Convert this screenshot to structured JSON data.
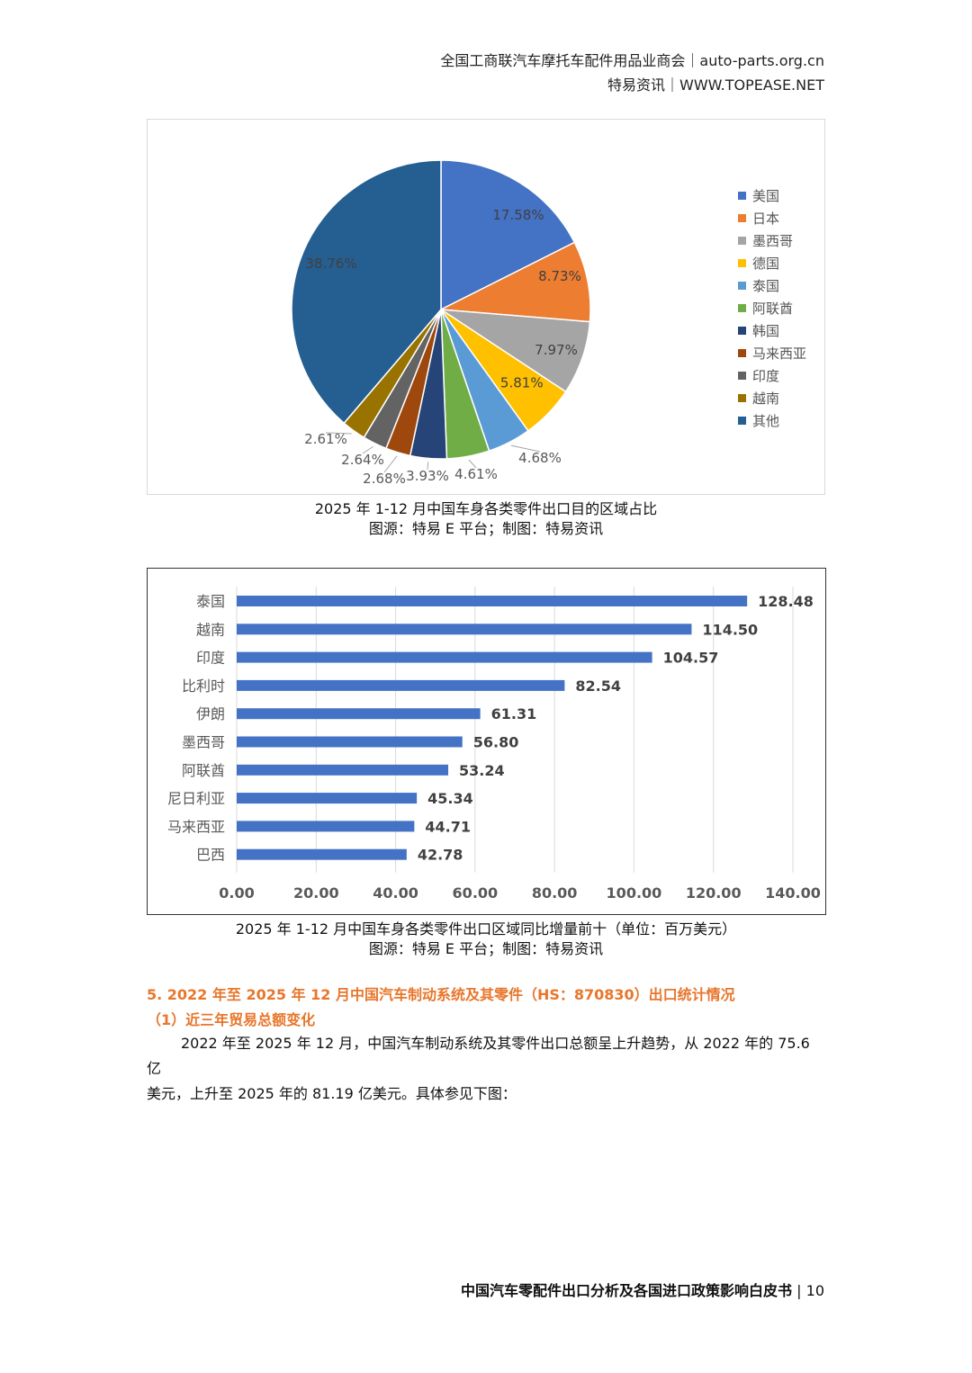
{
  "header": {
    "line1": "全国工商联汽车摩托车配件用品业商会｜auto-parts.org.cn",
    "line2": "特易资讯｜WWW.TOPEASE.NET"
  },
  "pie_caption": {
    "title": "2025 年 1-12 月中国车身各类零件出口目的区域占比",
    "source": "图源：特易 E 平台；制图：特易资讯"
  },
  "bar_caption": {
    "title": "2025 年 1-12 月中国车身各类零件出口区域同比增量前十（单位：百万美元）",
    "source": "图源：特易 E 平台；制图：特易资讯"
  },
  "section": {
    "heading": "5. 2022 年至 2025 年 12 月中国汽车制动系统及其零件（HS：870830）出口统计情况",
    "subheading": "（1）近三年贸易总额变化",
    "paragraph_line1": "2022 年至 2025 年 12 月，中国汽车制动系统及其零件出口总额呈上升趋势，从 2022 年的 75.6 亿",
    "paragraph_line2": "美元，上升至 2025 年的 81.19 亿美元。具体参见下图："
  },
  "footer": {
    "title": "中国汽车零配件出口分析及各国进口政策影响白皮书",
    "separator": "|",
    "page": "10"
  },
  "chart_data": [
    {
      "type": "pie",
      "categories": [
        "美国",
        "日本",
        "墨西哥",
        "德国",
        "泰国",
        "阿联酋",
        "韩国",
        "马来西亚",
        "印度",
        "越南",
        "其他"
      ],
      "values": [
        17.58,
        8.73,
        7.97,
        5.81,
        4.68,
        4.61,
        3.93,
        2.68,
        2.64,
        2.61,
        38.76
      ],
      "labels": [
        "17.58%",
        "8.73%",
        "7.97%",
        "5.81%",
        "4.68%",
        "4.61%",
        "3.93%",
        "2.68%",
        "2.64%",
        "2.61%",
        "38.76%"
      ],
      "colors": [
        "#4472c4",
        "#ed7d31",
        "#a5a5a5",
        "#ffc000",
        "#5b9bd5",
        "#70ad47",
        "#264478",
        "#9e480e",
        "#636363",
        "#997300",
        "#255e91"
      ],
      "legend_position": "right"
    },
    {
      "type": "bar",
      "orientation": "horizontal",
      "categories": [
        "泰国",
        "越南",
        "印度",
        "比利时",
        "伊朗",
        "墨西哥",
        "阿联酋",
        "尼日利亚",
        "马来西亚",
        "巴西"
      ],
      "values": [
        128.48,
        114.5,
        104.57,
        82.54,
        61.31,
        56.8,
        53.24,
        45.34,
        44.71,
        42.78
      ],
      "value_labels": [
        "128.48",
        "114.50",
        "104.57",
        "82.54",
        "61.31",
        "56.80",
        "53.24",
        "45.34",
        "44.71",
        "42.78"
      ],
      "x_ticks": [
        "0.00",
        "20.00",
        "40.00",
        "60.00",
        "80.00",
        "100.00",
        "120.00",
        "140.00"
      ],
      "xlim": [
        0,
        140
      ],
      "bar_color": "#4472c4",
      "grid": true
    }
  ]
}
